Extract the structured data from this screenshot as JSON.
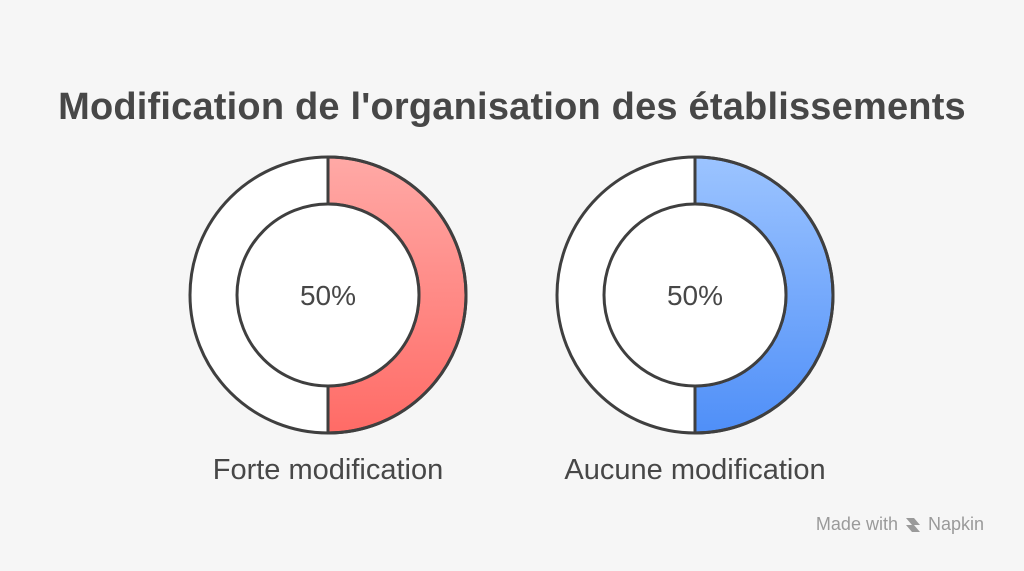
{
  "title": "Modification de l'organisation des établissements",
  "watermark": {
    "text_made_with": "Made with",
    "brand": "Napkin"
  },
  "colors": {
    "red_light": "#ffa9a6",
    "red_dark": "#ff6b66",
    "blue_light": "#9cc4ff",
    "blue_dark": "#4f8ff8",
    "outline": "#3f3f3f",
    "background": "#f6f6f6"
  },
  "chart_data": {
    "type": "pie",
    "variant": "donut",
    "title": "Modification de l'organisation des établissements",
    "series": [
      {
        "name": "Forte modification",
        "value": 50,
        "label": "50%",
        "color": "red"
      },
      {
        "name": "Aucune modification",
        "value": 50,
        "label": "50%",
        "color": "blue"
      }
    ]
  }
}
